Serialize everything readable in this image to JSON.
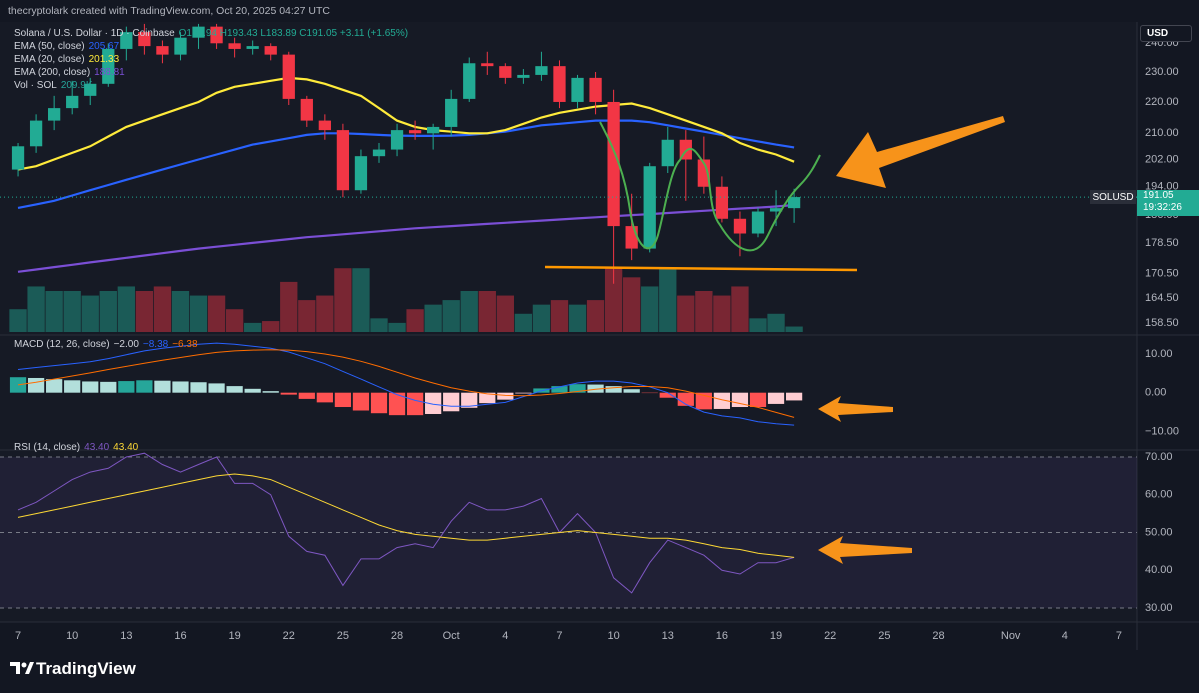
{
  "header": {
    "text": "thecryptolark created with TradingView.com, Oct 20, 2025 04:27 UTC",
    "currency": "USD"
  },
  "footer": {
    "brand": "TradingView"
  },
  "chart_data": [
    {
      "type": "candlestick",
      "title": "Solana / U.S. Dollar · 1D · Coinbase",
      "ohlc_text": "O187.94 H193.43 L183.89 C191.05 +3.11 (+1.65%)",
      "x": [
        "2025-09-07",
        "2025-09-08",
        "2025-09-09",
        "2025-09-10",
        "2025-09-11",
        "2025-09-12",
        "2025-09-13",
        "2025-09-14",
        "2025-09-15",
        "2025-09-16",
        "2025-09-17",
        "2025-09-18",
        "2025-09-19",
        "2025-09-20",
        "2025-09-21",
        "2025-09-22",
        "2025-09-23",
        "2025-09-24",
        "2025-09-25",
        "2025-09-26",
        "2025-09-27",
        "2025-09-28",
        "2025-09-29",
        "2025-09-30",
        "2025-10-01",
        "2025-10-02",
        "2025-10-03",
        "2025-10-04",
        "2025-10-05",
        "2025-10-06",
        "2025-10-07",
        "2025-10-08",
        "2025-10-09",
        "2025-10-10",
        "2025-10-11",
        "2025-10-12",
        "2025-10-13",
        "2025-10-14",
        "2025-10-15",
        "2025-10-16",
        "2025-10-17",
        "2025-10-18",
        "2025-10-19",
        "2025-10-20"
      ],
      "open": [
        199,
        206,
        214,
        218,
        222,
        226,
        238,
        244,
        239,
        236,
        242,
        246,
        240,
        238,
        239,
        236,
        221,
        214,
        211,
        193,
        203,
        205,
        211,
        210,
        212,
        221,
        233,
        232,
        228,
        229,
        232,
        220,
        228,
        220,
        183,
        177,
        200,
        208,
        202,
        194,
        185,
        181,
        187,
        187.94
      ],
      "high": [
        207,
        216,
        222,
        227,
        228,
        240,
        246,
        247,
        241,
        244,
        247,
        247,
        242,
        241,
        240,
        237,
        222,
        216,
        213,
        205,
        207,
        213,
        214,
        213,
        224,
        235,
        237,
        233,
        231,
        237,
        234,
        229,
        230,
        224,
        192,
        201,
        212,
        211,
        209,
        197,
        187,
        188,
        193,
        193.43
      ],
      "low": [
        197,
        204,
        211,
        216,
        219,
        225,
        234,
        236,
        233,
        234,
        238,
        238,
        235,
        236,
        234,
        219,
        212,
        208,
        191,
        192,
        201,
        203,
        208,
        205,
        209,
        220,
        229,
        226,
        226,
        227,
        218,
        218,
        216,
        168,
        174,
        176,
        198,
        190,
        192,
        184,
        175,
        180,
        183,
        183.89
      ],
      "close": [
        206,
        214,
        218,
        222,
        226,
        238,
        244,
        239,
        236,
        242,
        246,
        240,
        238,
        239,
        236,
        221,
        214,
        211,
        193,
        203,
        205,
        211,
        210,
        212,
        221,
        233,
        232,
        228,
        229,
        232,
        220,
        228,
        220,
        183,
        177,
        200,
        208,
        202,
        194,
        185,
        181,
        187,
        187.94,
        191.05
      ],
      "up_color": "#22ab94",
      "down_color": "#f23645",
      "xlim": [
        "2025-09-06",
        "2025-11-08"
      ],
      "xticks": [
        {
          "value": "2025-09-07",
          "label": "7"
        },
        {
          "value": "2025-09-10",
          "label": "10"
        },
        {
          "value": "2025-09-13",
          "label": "13"
        },
        {
          "value": "2025-09-16",
          "label": "16"
        },
        {
          "value": "2025-09-19",
          "label": "19"
        },
        {
          "value": "2025-09-22",
          "label": "22"
        },
        {
          "value": "2025-09-25",
          "label": "25"
        },
        {
          "value": "2025-09-28",
          "label": "28"
        },
        {
          "value": "2025-10-01",
          "label": "Oct"
        },
        {
          "value": "2025-10-04",
          "label": "4"
        },
        {
          "value": "2025-10-07",
          "label": "7"
        },
        {
          "value": "2025-10-10",
          "label": "10"
        },
        {
          "value": "2025-10-13",
          "label": "13"
        },
        {
          "value": "2025-10-16",
          "label": "16"
        },
        {
          "value": "2025-10-19",
          "label": "19"
        },
        {
          "value": "2025-10-22",
          "label": "22"
        },
        {
          "value": "2025-10-25",
          "label": "25"
        },
        {
          "value": "2025-10-28",
          "label": "28"
        },
        {
          "value": "2025-11-01",
          "label": "Nov"
        },
        {
          "value": "2025-11-04",
          "label": "4"
        },
        {
          "value": "2025-11-07",
          "label": "7"
        }
      ],
      "ylim": [
        156.4,
        247.7
      ],
      "log_scale": true,
      "yticks": [
        {
          "value": 158.5,
          "label": "158.50"
        },
        {
          "value": 164.5,
          "label": "164.50"
        },
        {
          "value": 170.5,
          "label": "170.50"
        },
        {
          "value": 178.5,
          "label": "178.50"
        },
        {
          "value": 186,
          "label": "186.00"
        },
        {
          "value": 194,
          "label": "194.00"
        },
        {
          "value": 202,
          "label": "202.00"
        },
        {
          "value": 210,
          "label": "210.00"
        },
        {
          "value": 220,
          "label": "220.00"
        },
        {
          "value": 230,
          "label": "230.00"
        },
        {
          "value": 240,
          "label": "240.00"
        }
      ],
      "series": [
        {
          "name": "EMA (50, close)",
          "color": "#2962ff",
          "last_label": "205.67",
          "values": [
            188,
            189,
            190,
            191.5,
            193,
            194.5,
            196,
            197.5,
            199,
            200.5,
            202,
            203.5,
            205,
            206.5,
            207.5,
            208.5,
            209.5,
            210,
            210,
            209.8,
            209.5,
            209.3,
            209.2,
            209.2,
            209.3,
            209.5,
            210,
            210.5,
            211.5,
            212.5,
            213,
            213.5,
            214,
            214,
            214,
            213.5,
            212.5,
            211.5,
            210.5,
            209.5,
            208.5,
            207.5,
            206.5,
            205.67
          ]
        },
        {
          "name": "EMA (20, close)",
          "color": "#ffeb3b",
          "last_label": "201.33",
          "values": [
            199,
            200,
            202,
            204,
            206,
            209,
            212,
            214,
            216,
            218,
            220,
            223,
            225,
            226,
            227,
            228,
            227.5,
            226,
            224,
            222,
            218,
            214,
            212,
            211,
            210.5,
            210,
            210,
            211,
            213,
            215,
            216.5,
            217.5,
            218.5,
            219,
            219.5,
            218,
            216,
            214,
            212,
            210,
            207,
            205,
            203.5,
            201.33
          ]
        },
        {
          "name": "EMA (200, close)",
          "color": "#7b4fd6",
          "last_label": "188.81",
          "values": [
            171,
            171.6,
            172.2,
            172.8,
            173.4,
            174,
            174.6,
            175.2,
            175.8,
            176.4,
            177,
            177.5,
            178,
            178.5,
            179,
            179.5,
            180,
            180.4,
            180.8,
            181.2,
            181.6,
            182,
            182.4,
            182.7,
            183,
            183.3,
            183.6,
            183.9,
            184.2,
            184.5,
            184.8,
            185.1,
            185.4,
            185.7,
            186,
            186.3,
            186.6,
            186.9,
            187.2,
            187.5,
            187.8,
            188.1,
            188.4,
            188.81
          ]
        }
      ],
      "volume": {
        "name": "Vol · SOL",
        "last_label": "209.9K",
        "ylim": [
          0,
          9
        ],
        "values": [
          2.5,
          5,
          4.5,
          4.5,
          4,
          4.5,
          5,
          4.5,
          5,
          4.5,
          4,
          4,
          2.5,
          1,
          1.2,
          5.5,
          3.5,
          4,
          7,
          7,
          1.5,
          1,
          2.5,
          3,
          3.5,
          4.5,
          4.5,
          4,
          2,
          3,
          3.5,
          3,
          3.5,
          7,
          6,
          5,
          7,
          4,
          4.5,
          4,
          5,
          1.5,
          2,
          0.6
        ]
      },
      "price_tag": {
        "symbol": "SOLUSD",
        "value_label": "191.05",
        "countdown": "19:32:26"
      }
    },
    {
      "type": "macd",
      "title": "MACD (12, 26, close)",
      "ylim": [
        -14.8,
        14.9
      ],
      "yticks": [
        {
          "value": -10,
          "label": "−10.00"
        },
        {
          "value": 0,
          "label": "0.00"
        },
        {
          "value": 10,
          "label": "10.00"
        }
      ],
      "histogram": {
        "last_label": "−2.00",
        "colors": {
          "up_grow": "#26a69a",
          "up_fall": "#b2dfdb",
          "down_grow": "#ff5252",
          "down_fall": "#ffcdd2"
        },
        "values": [
          4,
          3.8,
          3.5,
          3.2,
          2.9,
          2.8,
          3,
          3.2,
          3.1,
          2.9,
          2.7,
          2.4,
          1.7,
          1,
          0.4,
          -0.5,
          -1.6,
          -2.5,
          -3.7,
          -4.6,
          -5.3,
          -5.8,
          -5.8,
          -5.5,
          -4.8,
          -3.9,
          -2.7,
          -1.8,
          -0.2,
          1.1,
          1.7,
          2.2,
          2.1,
          1.7,
          0.9,
          -0.1,
          -1.3,
          -3.4,
          -4.3,
          -4.2,
          -3.7,
          -3.7,
          -2.9,
          -2.0
        ]
      },
      "lines": [
        {
          "color": "#2962ff",
          "last_label": "−8.38",
          "values": [
            6,
            6.5,
            7,
            7.5,
            8,
            8.8,
            9.8,
            10.8,
            11.5,
            12,
            12.5,
            12.8,
            12.5,
            12,
            11.5,
            10.5,
            9,
            7.5,
            5.5,
            3.5,
            1.5,
            -0.5,
            -2,
            -3,
            -3.5,
            -3.5,
            -3,
            -2.5,
            -1,
            0.5,
            1.5,
            2.5,
            3,
            3,
            2.5,
            1.5,
            0,
            -3,
            -5,
            -6,
            -6.5,
            -7.5,
            -8,
            -8.38
          ]
        },
        {
          "color": "#ff6d00",
          "last_label": "−6.38",
          "values": [
            2,
            2.7,
            3.5,
            4.3,
            5.1,
            6,
            6.8,
            7.6,
            8.4,
            9.1,
            9.8,
            10.4,
            10.8,
            11,
            11.1,
            11,
            10.6,
            10,
            9.2,
            8.1,
            6.8,
            5.3,
            3.8,
            2.5,
            1.3,
            0.4,
            -0.3,
            -0.7,
            -0.8,
            -0.6,
            -0.2,
            0.3,
            0.9,
            1.3,
            1.6,
            1.6,
            1.3,
            0.4,
            -0.7,
            -1.8,
            -2.8,
            -3.8,
            -5.1,
            -6.38
          ]
        }
      ]
    },
    {
      "type": "line",
      "title": "RSI (14, close)",
      "ylim": [
        26.3,
        71.85
      ],
      "yticks": [
        {
          "value": 30,
          "label": "30.00"
        },
        {
          "value": 40,
          "label": "40.00"
        },
        {
          "value": 50,
          "label": "50.00"
        },
        {
          "value": 60,
          "label": "60.00"
        },
        {
          "value": 70,
          "label": "70.00"
        }
      ],
      "band": [
        30,
        70
      ],
      "band_color": "#7e57c2",
      "levels": [
        30,
        50,
        70
      ],
      "lines": [
        {
          "color": "#7e57c2",
          "last_label": "43.40",
          "values": [
            56,
            58,
            61,
            64,
            66,
            67,
            70,
            71,
            68,
            66,
            68,
            70,
            63,
            63,
            60,
            49,
            45,
            44,
            36,
            43,
            43,
            46,
            47,
            46,
            53,
            58,
            56,
            56,
            57,
            59,
            50,
            55,
            50,
            38,
            34,
            42,
            48,
            46,
            44,
            40,
            39,
            42,
            42,
            43.4
          ]
        },
        {
          "color": "#fdd835",
          "last_label": "43.40",
          "values": [
            54,
            55,
            56,
            57,
            58,
            59,
            60,
            61,
            62,
            63,
            64,
            65,
            65.5,
            65,
            64,
            62,
            60,
            58,
            56,
            54,
            52,
            50.5,
            49.5,
            49,
            48.5,
            48,
            48,
            48.5,
            49,
            49.5,
            50,
            50.5,
            50,
            49.5,
            49,
            48.5,
            48.5,
            48,
            47,
            46,
            45.5,
            44.5,
            44,
            43.4
          ]
        }
      ]
    }
  ]
}
